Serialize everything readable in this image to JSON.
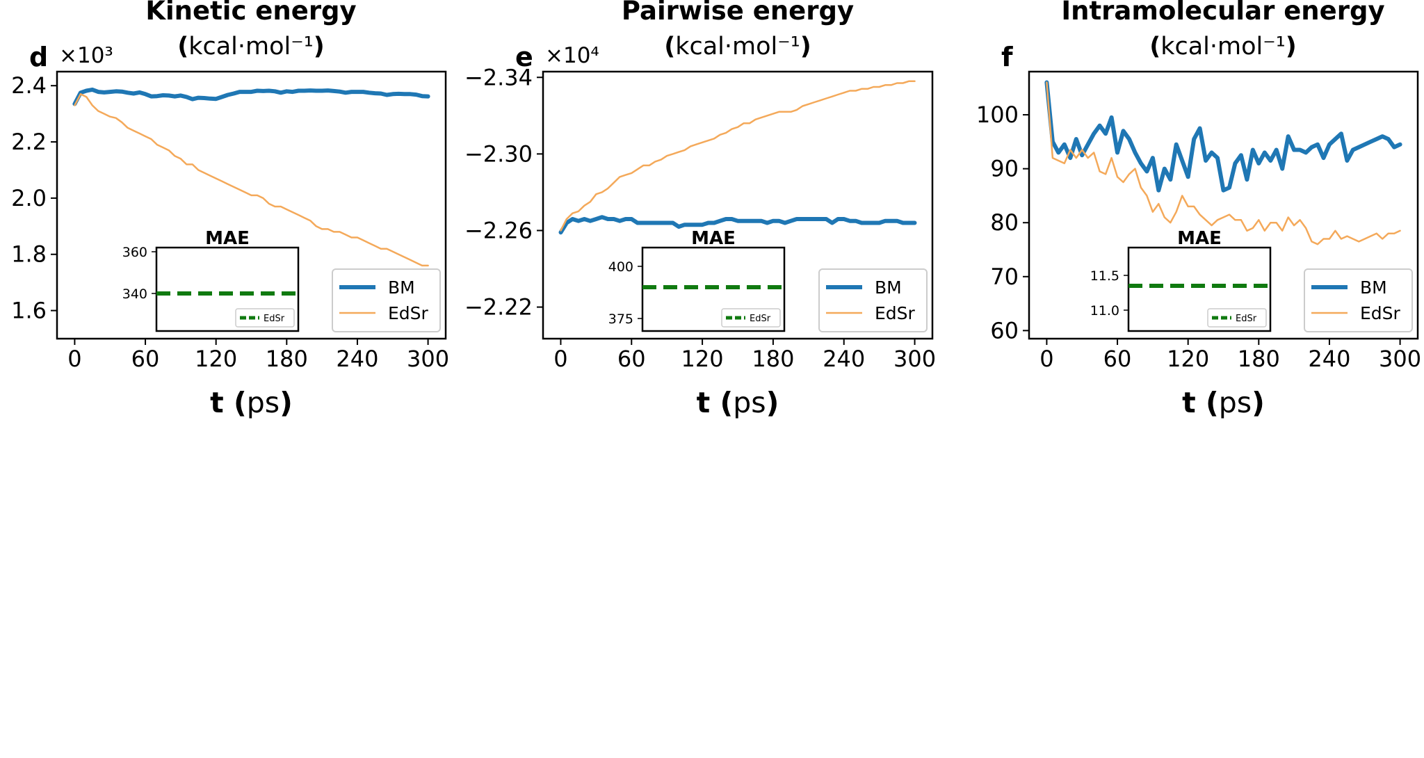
{
  "colors": {
    "bm": "#1f77b4",
    "edsr": "#f4a95a",
    "mae": "#107a10",
    "frame": "#000000",
    "legend_border": "#cccccc"
  },
  "xlabel": {
    "t": "t",
    "unit": "(ps)"
  },
  "inset_title": "MAE",
  "chart_data": [
    {
      "type": "line",
      "panel_letter": "d",
      "title": "Kinetic energy",
      "unit_label": "(kcal·mol⁻¹)",
      "offset_label": "×10³",
      "xticks": [
        0,
        60,
        120,
        180,
        240,
        300
      ],
      "xlim": [
        -15,
        315
      ],
      "yticks": [
        1.6,
        1.8,
        2.0,
        2.2,
        2.4
      ],
      "ytick_labels": [
        "1.6",
        "1.8",
        "2.0",
        "2.2",
        "2.4"
      ],
      "ylim": [
        1.5,
        2.45
      ],
      "legend_position": "lower-right",
      "series": [
        {
          "name": "BM",
          "x": [
            0,
            5,
            10,
            15,
            20,
            25,
            30,
            35,
            40,
            45,
            50,
            55,
            60,
            65,
            70,
            75,
            80,
            85,
            90,
            95,
            100,
            105,
            110,
            115,
            120,
            125,
            130,
            135,
            140,
            145,
            150,
            155,
            160,
            165,
            170,
            175,
            180,
            185,
            190,
            195,
            200,
            205,
            210,
            215,
            220,
            225,
            230,
            235,
            240,
            245,
            250,
            255,
            260,
            265,
            270,
            275,
            280,
            285,
            290,
            295,
            300
          ],
          "y": [
            2.335,
            2.375,
            2.382,
            2.386,
            2.378,
            2.376,
            2.378,
            2.38,
            2.379,
            2.375,
            2.372,
            2.376,
            2.37,
            2.362,
            2.363,
            2.366,
            2.365,
            2.362,
            2.365,
            2.36,
            2.352,
            2.357,
            2.356,
            2.354,
            2.353,
            2.36,
            2.367,
            2.372,
            2.378,
            2.378,
            2.378,
            2.382,
            2.381,
            2.382,
            2.38,
            2.375,
            2.38,
            2.378,
            2.382,
            2.382,
            2.383,
            2.382,
            2.382,
            2.383,
            2.381,
            2.379,
            2.375,
            2.378,
            2.378,
            2.378,
            2.375,
            2.373,
            2.372,
            2.367,
            2.37,
            2.371,
            2.37,
            2.37,
            2.368,
            2.363,
            2.362
          ]
        },
        {
          "name": "EdSr",
          "x": [
            0,
            5,
            10,
            15,
            20,
            25,
            30,
            35,
            40,
            45,
            50,
            55,
            60,
            65,
            70,
            75,
            80,
            85,
            90,
            95,
            100,
            105,
            110,
            115,
            120,
            125,
            130,
            135,
            140,
            145,
            150,
            155,
            160,
            165,
            170,
            175,
            180,
            185,
            190,
            195,
            200,
            205,
            210,
            215,
            220,
            225,
            230,
            235,
            240,
            245,
            250,
            255,
            260,
            265,
            270,
            275,
            280,
            285,
            290,
            295,
            300
          ],
          "y": [
            2.33,
            2.37,
            2.36,
            2.33,
            2.31,
            2.3,
            2.29,
            2.285,
            2.27,
            2.25,
            2.24,
            2.23,
            2.22,
            2.21,
            2.19,
            2.18,
            2.17,
            2.15,
            2.14,
            2.12,
            2.12,
            2.1,
            2.09,
            2.08,
            2.07,
            2.06,
            2.05,
            2.04,
            2.03,
            2.02,
            2.01,
            2.01,
            2.0,
            1.98,
            1.97,
            1.97,
            1.96,
            1.95,
            1.94,
            1.93,
            1.92,
            1.9,
            1.89,
            1.89,
            1.88,
            1.88,
            1.87,
            1.86,
            1.86,
            1.85,
            1.84,
            1.83,
            1.82,
            1.82,
            1.81,
            1.8,
            1.79,
            1.78,
            1.77,
            1.76,
            1.76
          ]
        }
      ],
      "inset": {
        "type": "line",
        "yticks": [
          340,
          360
        ],
        "ylim": [
          322,
          362
        ],
        "mae_value": 340,
        "legend": "EdSr"
      }
    },
    {
      "type": "line",
      "panel_letter": "e",
      "title": "Pairwise energy",
      "unit_label": "(kcal·mol⁻¹)",
      "offset_label": "×10⁴",
      "xticks": [
        0,
        60,
        120,
        180,
        240,
        300
      ],
      "xlim": [
        -15,
        315
      ],
      "yticks": [
        -2.34,
        -2.3,
        -2.26,
        -2.22
      ],
      "ytick_labels": [
        "−2.34",
        "−2.30",
        "−2.26",
        "−2.22"
      ],
      "ylim": [
        -2.343,
        -2.2035
      ],
      "yinverted": true,
      "legend_position": "lower-right",
      "series": [
        {
          "name": "BM",
          "x": [
            0,
            5,
            10,
            15,
            20,
            25,
            30,
            35,
            40,
            45,
            50,
            55,
            60,
            65,
            70,
            75,
            80,
            85,
            90,
            95,
            100,
            105,
            110,
            115,
            120,
            125,
            130,
            135,
            140,
            145,
            150,
            155,
            160,
            165,
            170,
            175,
            180,
            185,
            190,
            195,
            200,
            205,
            210,
            215,
            220,
            225,
            230,
            235,
            240,
            245,
            250,
            255,
            260,
            265,
            270,
            275,
            280,
            285,
            290,
            295,
            300
          ],
          "y": [
            -2.259,
            -2.264,
            -2.266,
            -2.265,
            -2.266,
            -2.265,
            -2.266,
            -2.267,
            -2.266,
            -2.266,
            -2.265,
            -2.266,
            -2.266,
            -2.264,
            -2.264,
            -2.264,
            -2.264,
            -2.264,
            -2.264,
            -2.264,
            -2.262,
            -2.263,
            -2.263,
            -2.263,
            -2.263,
            -2.264,
            -2.264,
            -2.265,
            -2.266,
            -2.266,
            -2.265,
            -2.265,
            -2.265,
            -2.265,
            -2.265,
            -2.264,
            -2.265,
            -2.265,
            -2.264,
            -2.265,
            -2.266,
            -2.266,
            -2.266,
            -2.266,
            -2.266,
            -2.266,
            -2.264,
            -2.266,
            -2.266,
            -2.265,
            -2.265,
            -2.264,
            -2.264,
            -2.264,
            -2.264,
            -2.265,
            -2.265,
            -2.265,
            -2.264,
            -2.264,
            -2.264
          ]
        },
        {
          "name": "EdSr",
          "x": [
            0,
            5,
            10,
            15,
            20,
            25,
            30,
            35,
            40,
            45,
            50,
            55,
            60,
            65,
            70,
            75,
            80,
            85,
            90,
            95,
            100,
            105,
            110,
            115,
            120,
            125,
            130,
            135,
            140,
            145,
            150,
            155,
            160,
            165,
            170,
            175,
            180,
            185,
            190,
            195,
            200,
            205,
            210,
            215,
            220,
            225,
            230,
            235,
            240,
            245,
            250,
            255,
            260,
            265,
            270,
            275,
            280,
            285,
            290,
            295,
            300
          ],
          "y": [
            -2.26,
            -2.266,
            -2.269,
            -2.27,
            -2.273,
            -2.275,
            -2.279,
            -2.28,
            -2.282,
            -2.285,
            -2.288,
            -2.289,
            -2.29,
            -2.292,
            -2.294,
            -2.294,
            -2.296,
            -2.297,
            -2.299,
            -2.3,
            -2.301,
            -2.302,
            -2.304,
            -2.305,
            -2.306,
            -2.307,
            -2.308,
            -2.31,
            -2.311,
            -2.313,
            -2.314,
            -2.316,
            -2.316,
            -2.318,
            -2.319,
            -2.32,
            -2.321,
            -2.322,
            -2.322,
            -2.322,
            -2.323,
            -2.325,
            -2.326,
            -2.327,
            -2.328,
            -2.329,
            -2.33,
            -2.331,
            -2.332,
            -2.333,
            -2.333,
            -2.334,
            -2.334,
            -2.335,
            -2.335,
            -2.336,
            -2.336,
            -2.337,
            -2.337,
            -2.338,
            -2.338
          ]
        }
      ],
      "inset": {
        "type": "line",
        "yticks": [
          375,
          400
        ],
        "ylim": [
          369,
          409
        ],
        "mae_value": 390,
        "legend": "EdSr"
      }
    },
    {
      "type": "line",
      "panel_letter": "f",
      "title": "Intramolecular energy",
      "unit_label": "(kcal·mol⁻¹)",
      "offset_label": "",
      "xticks": [
        0,
        60,
        120,
        180,
        240,
        300
      ],
      "xlim": [
        -15,
        315
      ],
      "yticks": [
        60,
        70,
        80,
        90,
        100
      ],
      "ytick_labels": [
        "60",
        "70",
        "80",
        "90",
        "100"
      ],
      "ylim": [
        58.5,
        108
      ],
      "legend_position": "lower-right",
      "series": [
        {
          "name": "BM",
          "x": [
            0,
            5,
            10,
            15,
            20,
            25,
            30,
            35,
            40,
            45,
            50,
            55,
            60,
            65,
            70,
            75,
            80,
            85,
            90,
            95,
            100,
            105,
            110,
            115,
            120,
            125,
            130,
            135,
            140,
            145,
            150,
            155,
            160,
            165,
            170,
            175,
            180,
            185,
            190,
            195,
            200,
            205,
            210,
            215,
            220,
            225,
            230,
            235,
            240,
            245,
            250,
            255,
            260,
            265,
            270,
            275,
            280,
            285,
            290,
            295,
            300
          ],
          "y": [
            106,
            95,
            93,
            94.5,
            92,
            95.5,
            92.5,
            94.5,
            96.5,
            98,
            96.5,
            99.5,
            93,
            97,
            95.5,
            93,
            91,
            89.5,
            92,
            86,
            90,
            88,
            94.5,
            91.5,
            88.5,
            95.5,
            97.5,
            91.5,
            93,
            92,
            86,
            86.5,
            91,
            92.5,
            88,
            93.5,
            91,
            93,
            91.5,
            93.5,
            90,
            96,
            93.5,
            93.5,
            93,
            94,
            94.5,
            92,
            94.5,
            95.5,
            96.5,
            91.5,
            93.5,
            94,
            94.5,
            95,
            95.5,
            96,
            95.5,
            94,
            94.5
          ]
        },
        {
          "name": "EdSr",
          "x": [
            0,
            5,
            10,
            15,
            20,
            25,
            30,
            35,
            40,
            45,
            50,
            55,
            60,
            65,
            70,
            75,
            80,
            85,
            90,
            95,
            100,
            105,
            110,
            115,
            120,
            125,
            130,
            135,
            140,
            145,
            150,
            155,
            160,
            165,
            170,
            175,
            180,
            185,
            190,
            195,
            200,
            205,
            210,
            215,
            220,
            225,
            230,
            235,
            240,
            245,
            250,
            255,
            260,
            265,
            270,
            275,
            280,
            285,
            290,
            295,
            300
          ],
          "y": [
            106,
            92,
            91.5,
            91,
            93.5,
            92,
            93.5,
            92,
            93,
            89.5,
            89,
            92,
            88.5,
            87.5,
            89,
            90,
            86.5,
            85,
            82,
            83.5,
            81,
            80,
            82,
            85,
            83,
            83,
            81.5,
            80.5,
            79.5,
            80.5,
            81,
            81.5,
            80.5,
            80.5,
            78.5,
            79,
            80.5,
            78.5,
            80,
            80,
            78.5,
            81,
            79.5,
            80.5,
            79,
            76.5,
            76,
            77,
            77,
            78.5,
            77,
            77.5,
            77,
            76.5,
            77,
            77.5,
            78,
            77,
            78,
            78,
            78.5
          ]
        }
      ],
      "inset": {
        "type": "line",
        "yticks": [
          11.0,
          11.5
        ],
        "ytick_labels": [
          "11.0",
          "11.5"
        ],
        "ylim": [
          10.7,
          11.9
        ],
        "mae_value": 11.35,
        "legend": "EdSr"
      }
    }
  ]
}
